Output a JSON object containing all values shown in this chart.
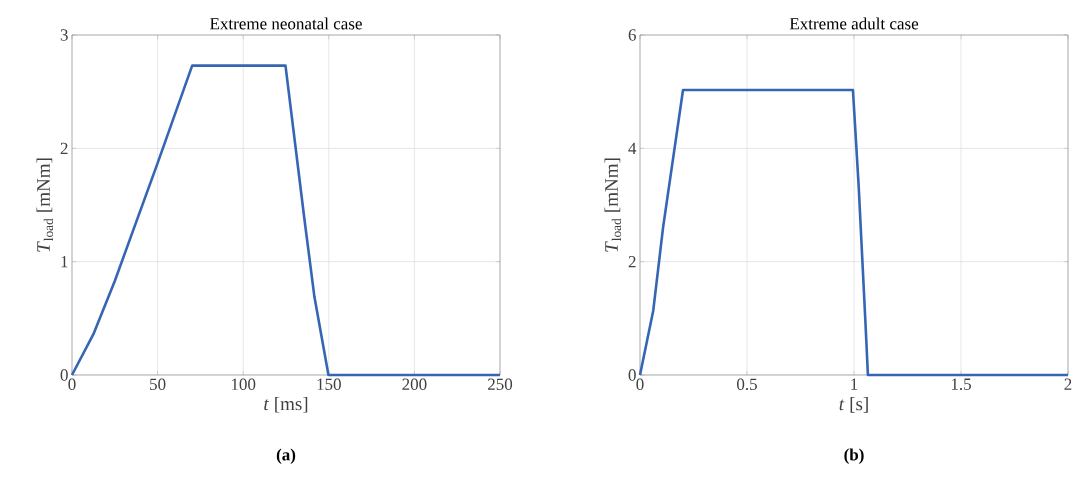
{
  "chart_data": [
    {
      "type": "line",
      "title": "Extreme neonatal case",
      "xlabel": "*t* [ms]",
      "ylabel": "*T*$_{load}$ [mNm]",
      "series": [
        {
          "color": "#3566b3",
          "x": [
            0,
            12.5,
            25,
            50,
            70.2,
            124.7,
            135.8,
            141.6,
            149.8,
            250
          ],
          "values": [
            0,
            0.36,
            0.83,
            1.87,
            2.73,
            2.73,
            1.37,
            0.69,
            0,
            0
          ]
        }
      ],
      "xlim": [
        0,
        250
      ],
      "xticks": [
        0,
        50,
        100,
        150,
        200,
        250
      ],
      "ylim": [
        0,
        3
      ],
      "yticks": [
        0,
        1,
        2,
        3
      ],
      "grid": true,
      "line_style": "solid",
      "marker": "none",
      "annotations": [
        "(a)"
      ]
    },
    {
      "type": "line",
      "title": "Extreme adult case",
      "xlabel": "*t* [s]",
      "ylabel": "*T*$_{load}$ [mNm]",
      "series": [
        {
          "color": "#3566b3",
          "x": [
            0,
            0.062,
            0.108,
            0.201,
            0.995,
            1.022,
            1.053,
            1.065,
            2
          ],
          "values": [
            0,
            1.14,
            2.61,
            5.03,
            5.03,
            3.32,
            0.96,
            0,
            0
          ]
        }
      ],
      "xlim": [
        0,
        2
      ],
      "xticks": [
        0,
        0.5,
        1,
        1.5,
        2
      ],
      "ylim": [
        0,
        6
      ],
      "yticks": [
        0,
        2,
        4,
        6
      ],
      "grid": true,
      "line_style": "solid",
      "marker": "none",
      "annotations": [
        "(b)"
      ]
    }
  ]
}
